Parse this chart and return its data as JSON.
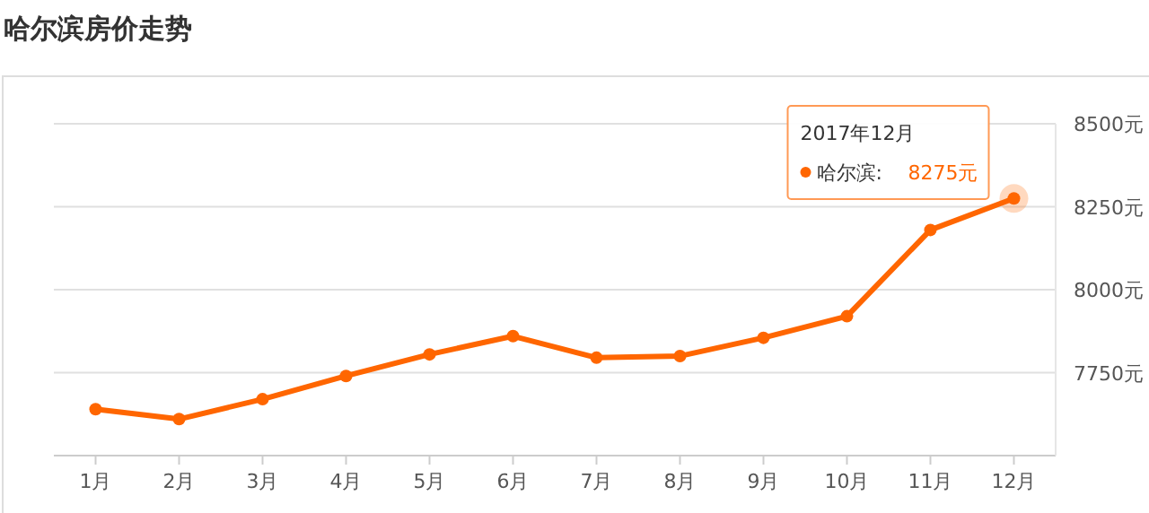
{
  "chart_data": {
    "type": "line",
    "title": "哈尔滨房价走势",
    "categories": [
      "1月",
      "2月",
      "3月",
      "4月",
      "5月",
      "6月",
      "7月",
      "8月",
      "9月",
      "10月",
      "11月",
      "12月"
    ],
    "series": [
      {
        "name": "哈尔滨:",
        "color": "#ff6600",
        "values": [
          7640,
          7610,
          7670,
          7740,
          7805,
          7860,
          7795,
          7800,
          7855,
          7920,
          8180,
          8275
        ],
        "value_labels": [
          null,
          null,
          null,
          null,
          null,
          null,
          null,
          null,
          null,
          null,
          null,
          "8275元"
        ]
      }
    ],
    "ylim": [
      7500,
      8500
    ],
    "yticks": [
      {
        "value": 7750,
        "label": "7750元"
      },
      {
        "value": 8000,
        "label": "8000元"
      },
      {
        "value": 8250,
        "label": "8250元"
      },
      {
        "value": 8500,
        "label": "8500元"
      }
    ],
    "annotations": [
      "2017年12月"
    ],
    "grid": "y",
    "marker": "circle",
    "line_style": "solid",
    "legend": "top right"
  }
}
